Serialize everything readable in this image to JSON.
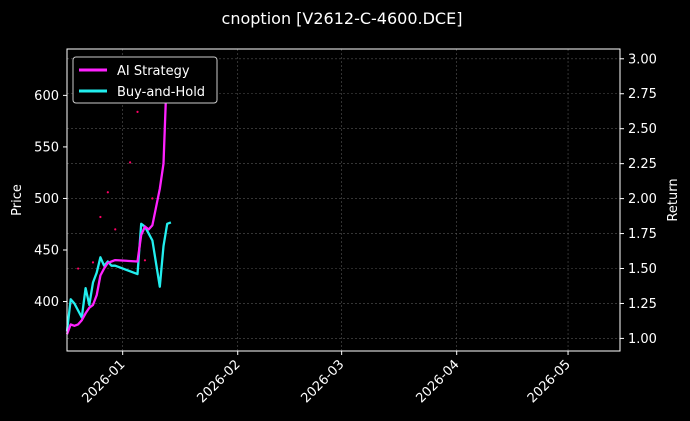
{
  "chart_data": {
    "type": "line",
    "title": "cnoption [V2612-C-4600.DCE]",
    "xlabel": "",
    "ylabel_left": "Price",
    "ylabel_right": "Return",
    "x_ticks": [
      "2026-01",
      "2026-02",
      "2026-03",
      "2026-04",
      "2026-05"
    ],
    "xlim": [
      "2025-12-17",
      "2026-05-15"
    ],
    "ylim_left": [
      352,
      645
    ],
    "ylim_right": [
      0.91,
      3.07
    ],
    "yticks_left": [
      400,
      450,
      500,
      550,
      600
    ],
    "yticks_right": [
      "1.00",
      "1.25",
      "1.50",
      "1.75",
      "2.00",
      "2.25",
      "2.50",
      "2.75",
      "3.00"
    ],
    "grid": true,
    "legend_position": "top-left",
    "colors": {
      "ai_strategy": "#ff22ff",
      "buy_and_hold": "#22eeee",
      "price_dots": "#ff0066"
    },
    "series": [
      {
        "name": "AI Strategy",
        "axis": "right",
        "x": [
          "2025-12-17",
          "2025-12-18",
          "2025-12-19",
          "2025-12-20",
          "2025-12-21",
          "2025-12-22",
          "2025-12-23",
          "2025-12-24",
          "2025-12-25",
          "2025-12-26",
          "2025-12-27",
          "2025-12-28",
          "2025-12-29",
          "2025-12-30",
          "2026-01-05",
          "2026-01-06",
          "2026-01-07",
          "2026-01-08",
          "2026-01-09",
          "2026-01-11",
          "2026-01-12",
          "2026-01-13"
        ],
        "values": [
          1.03,
          1.1,
          1.09,
          1.1,
          1.13,
          1.18,
          1.22,
          1.24,
          1.31,
          1.45,
          1.5,
          1.54,
          1.55,
          1.56,
          1.55,
          1.74,
          1.8,
          1.78,
          1.81,
          2.07,
          2.25,
          2.97
        ]
      },
      {
        "name": "Buy-and-Hold",
        "axis": "right",
        "x": [
          "2025-12-17",
          "2025-12-18",
          "2025-12-19",
          "2025-12-20",
          "2025-12-21",
          "2025-12-22",
          "2025-12-23",
          "2025-12-24",
          "2025-12-25",
          "2025-12-26",
          "2025-12-27",
          "2025-12-28",
          "2025-12-29",
          "2025-12-30",
          "2026-01-05",
          "2026-01-06",
          "2026-01-07",
          "2026-01-08",
          "2026-01-09",
          "2026-01-11",
          "2026-01-12",
          "2026-01-13",
          "2026-01-14"
        ],
        "values": [
          1.05,
          1.28,
          1.25,
          1.2,
          1.15,
          1.36,
          1.24,
          1.4,
          1.47,
          1.58,
          1.52,
          1.55,
          1.52,
          1.52,
          1.46,
          1.82,
          1.8,
          1.75,
          1.7,
          1.37,
          1.66,
          1.82,
          1.83
        ]
      },
      {
        "name": "Price",
        "axis": "left",
        "x": [
          "2025-12-18",
          "2025-12-20",
          "2025-12-22",
          "2025-12-24",
          "2025-12-26",
          "2025-12-28",
          "2025-12-30",
          "2026-01-01",
          "2026-01-03",
          "2026-01-05",
          "2026-01-07",
          "2026-01-09",
          "2026-01-11"
        ],
        "values": [
          398,
          432,
          410,
          438,
          482,
          506,
          470,
          620,
          535,
          584,
          440,
          500,
          618
        ]
      }
    ]
  }
}
